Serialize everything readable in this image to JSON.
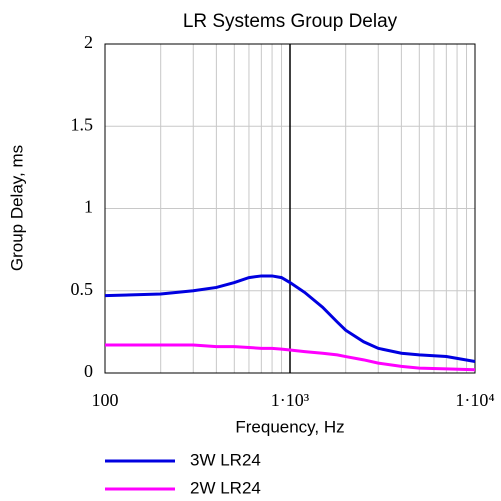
{
  "chart_data": {
    "type": "line",
    "title": "LR Systems Group Delay",
    "x_label": "Frequency, Hz",
    "y_label": "Group Delay, ms",
    "log_x": true,
    "grid": true,
    "xlim": [
      100,
      10000
    ],
    "xticks": [
      100,
      {
        "value": 1000,
        "label": "1·10³"
      },
      {
        "value": 10000,
        "label": "1·10⁴"
      }
    ],
    "ylim": [
      0,
      2
    ],
    "yticks": [
      0,
      0.5,
      1,
      1.5,
      2
    ],
    "x": [
      100,
      200,
      300,
      400,
      500,
      600,
      700,
      800,
      900,
      1000,
      1200,
      1500,
      1800,
      2000,
      2500,
      3000,
      4000,
      5000,
      7000,
      10000
    ],
    "series": [
      {
        "name": "3W LR24",
        "color": "#0000e0",
        "values": [
          0.47,
          0.48,
          0.5,
          0.52,
          0.55,
          0.58,
          0.59,
          0.59,
          0.58,
          0.55,
          0.49,
          0.4,
          0.31,
          0.26,
          0.19,
          0.15,
          0.12,
          0.11,
          0.1,
          0.07
        ]
      },
      {
        "name": "2W LR24",
        "color": "#ff00ff",
        "values": [
          0.17,
          0.17,
          0.17,
          0.16,
          0.16,
          0.155,
          0.15,
          0.15,
          0.145,
          0.14,
          0.13,
          0.12,
          0.11,
          0.1,
          0.08,
          0.06,
          0.04,
          0.03,
          0.025,
          0.02
        ]
      }
    ]
  }
}
